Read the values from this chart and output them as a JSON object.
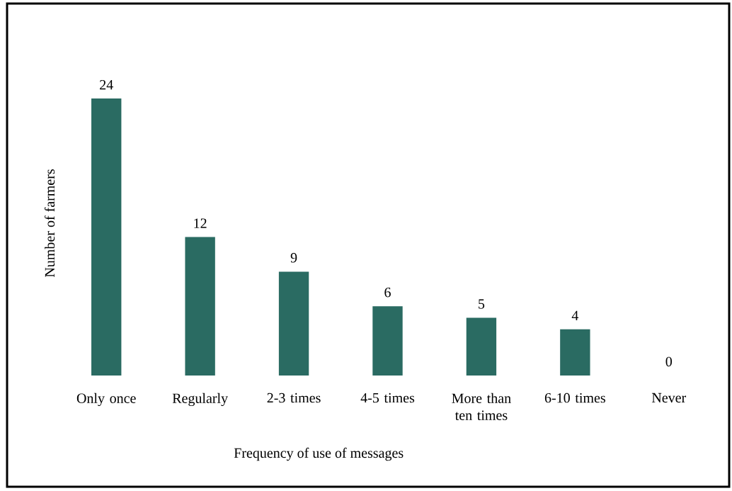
{
  "chart_data": {
    "type": "bar",
    "xlabel": "Frequency of use of messages",
    "ylabel": "Number of farmers",
    "categories": [
      "Only once",
      "Regularly",
      "2-3 times",
      "4-5 times",
      "More than ten times",
      "6-10 times",
      "Never"
    ],
    "values": [
      24,
      12,
      9,
      6,
      5,
      4,
      0
    ],
    "color": "#2a6b62",
    "data_labels": true
  }
}
